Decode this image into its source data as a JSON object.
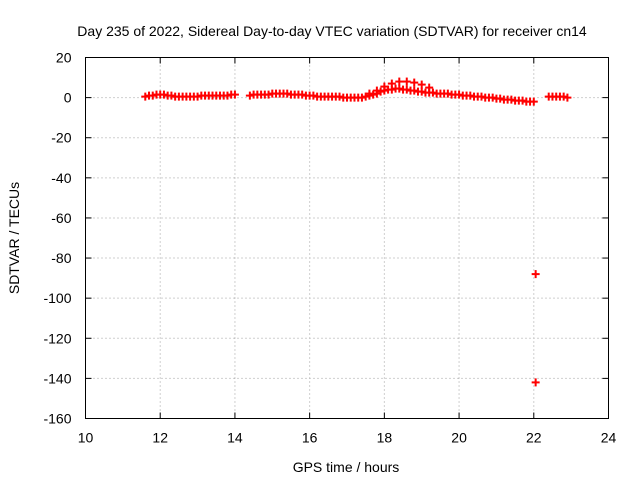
{
  "chart_data": {
    "type": "scatter",
    "title": "Day 235 of 2022, Sidereal Day-to-day VTEC variation (SDTVAR) for receiver cn14",
    "xlabel": "GPS time / hours",
    "ylabel": "SDTVAR / TECUs",
    "xlim": [
      10,
      24
    ],
    "ylim": [
      -160,
      20
    ],
    "xticks": [
      "10",
      "12",
      "14",
      "16",
      "18",
      "20",
      "22",
      "24"
    ],
    "yticks": [
      "20",
      "0",
      "-20",
      "-40",
      "-60",
      "-80",
      "-100",
      "-120",
      "-140",
      "-160"
    ],
    "grid": true,
    "marker": "plus",
    "color": "#ff0000",
    "series": [
      {
        "x": [
          11.6,
          11.7,
          11.8,
          11.9,
          12.0,
          12.1,
          12.2,
          12.3,
          12.4,
          12.5,
          12.6,
          12.7,
          12.8,
          12.9,
          13.0,
          13.1,
          13.2,
          13.3,
          13.4,
          13.5,
          13.6,
          13.7,
          13.8,
          13.9,
          14.0,
          14.4,
          14.5,
          14.6,
          14.7,
          14.8,
          14.9,
          15.0,
          15.1,
          15.2,
          15.3,
          15.4,
          15.5,
          15.6,
          15.7,
          15.8,
          15.9,
          16.0,
          16.1,
          16.2,
          16.3,
          16.4,
          16.5,
          16.6,
          16.7,
          16.8,
          16.9,
          17.0,
          17.1,
          17.2,
          17.3,
          17.4,
          17.5,
          17.6,
          17.7,
          17.8,
          17.9,
          18.0,
          18.1,
          18.2,
          18.3,
          18.4,
          18.5,
          18.6,
          18.7,
          18.8,
          18.9,
          19.0,
          19.1,
          19.2,
          19.3,
          19.4,
          19.5,
          19.6,
          19.7,
          19.8,
          19.9,
          20.0,
          20.1,
          20.2,
          20.3,
          20.4,
          20.5,
          20.6,
          20.7,
          20.8,
          20.9,
          21.0,
          21.1,
          21.2,
          21.3,
          21.4,
          21.5,
          21.6,
          21.7,
          21.8,
          21.9,
          22.0,
          22.4,
          22.5,
          22.6,
          22.7,
          22.8,
          22.9,
          17.6,
          17.8,
          18.0,
          18.2,
          18.4,
          18.6,
          18.8,
          19.0,
          19.2,
          22.05,
          22.05
        ],
        "y": [
          0.5,
          1,
          1,
          1.5,
          1.5,
          1.5,
          1,
          1,
          0.5,
          0.5,
          0.5,
          0.5,
          0.5,
          0.5,
          0.5,
          1,
          1,
          1,
          1,
          1,
          1,
          1,
          1,
          1.5,
          1.5,
          1,
          1.5,
          1.5,
          1.5,
          1.5,
          1.5,
          2,
          2,
          2,
          2,
          2,
          1.5,
          1.5,
          1.5,
          1.5,
          1,
          1,
          1,
          0.5,
          0.5,
          0.5,
          0.5,
          0.5,
          0.5,
          0.5,
          0,
          0,
          0,
          0,
          0,
          0,
          0.5,
          1,
          1.5,
          2,
          3,
          3.5,
          4,
          4,
          4.5,
          4.5,
          4,
          4,
          3.5,
          3.5,
          3,
          3,
          2.5,
          2.5,
          2.5,
          2,
          2,
          2,
          2,
          1.5,
          1.5,
          1.5,
          1,
          1,
          1,
          0.5,
          0.5,
          0.5,
          0,
          0,
          0,
          -0.5,
          -0.5,
          -1,
          -1,
          -1,
          -1.5,
          -1.5,
          -1.5,
          -2,
          -2,
          -2,
          0.5,
          0.5,
          0.5,
          0.5,
          0.5,
          0,
          2,
          3.5,
          5.5,
          7,
          8,
          8,
          7.5,
          6.5,
          5,
          -88,
          -142
        ]
      }
    ]
  }
}
